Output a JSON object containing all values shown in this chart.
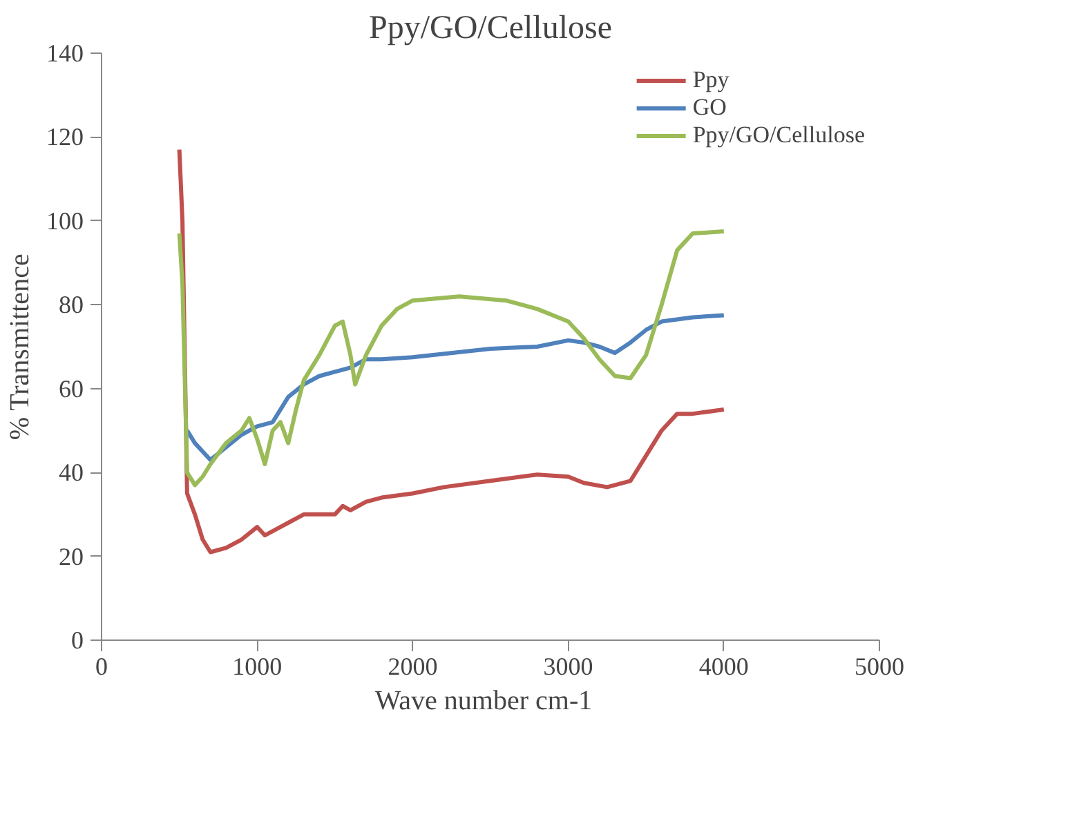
{
  "chart_data": {
    "type": "line",
    "title": "Ppy/GO/Cellulose",
    "xlabel": "Wave  number  cm-1",
    "ylabel": "% Transmittence",
    "xlim": [
      0,
      5000
    ],
    "xticks": [
      0,
      1000,
      2000,
      3000,
      4000,
      5000
    ],
    "ylim": [
      0,
      140
    ],
    "yticks": [
      0,
      20,
      40,
      60,
      80,
      100,
      120,
      140
    ],
    "grid": false,
    "legend": "top right",
    "marker": "none",
    "line_style": "solid",
    "series": [
      {
        "name": "Ppy",
        "color": "#c0504d",
        "x": [
          500,
          520,
          550,
          600,
          650,
          700,
          800,
          900,
          1000,
          1050,
          1100,
          1200,
          1300,
          1500,
          1550,
          1600,
          1700,
          1800,
          2000,
          2200,
          2500,
          2800,
          3000,
          3100,
          3250,
          3400,
          3500,
          3600,
          3700,
          3800,
          4000
        ],
        "values": [
          117,
          100,
          35,
          30,
          24,
          21,
          22,
          24,
          27,
          25,
          26,
          28,
          30,
          30,
          32,
          31,
          33,
          34,
          35,
          36.5,
          38,
          39.5,
          39,
          37.5,
          36.5,
          38,
          44,
          50,
          54,
          54,
          55
        ]
      },
      {
        "name": "GO",
        "color": "#4f81bd",
        "x": [
          550,
          600,
          700,
          800,
          900,
          1000,
          1100,
          1200,
          1300,
          1400,
          1500,
          1600,
          1700,
          1800,
          2000,
          2500,
          2800,
          3000,
          3100,
          3200,
          3300,
          3400,
          3500,
          3600,
          3800,
          4000
        ],
        "values": [
          50,
          47,
          43,
          46,
          49,
          51,
          52,
          58,
          61,
          63,
          64,
          65,
          67,
          67,
          67.5,
          69.5,
          70,
          71.5,
          71,
          70,
          68.5,
          71,
          74,
          76,
          77,
          77.5
        ]
      },
      {
        "name": "Ppy/GO/Cellulose",
        "color": "#9bbb59",
        "x": [
          500,
          520,
          550,
          600,
          650,
          700,
          800,
          900,
          950,
          1000,
          1050,
          1100,
          1150,
          1200,
          1250,
          1300,
          1400,
          1500,
          1550,
          1600,
          1630,
          1700,
          1800,
          1900,
          2000,
          2300,
          2600,
          2800,
          3000,
          3100,
          3200,
          3300,
          3400,
          3500,
          3600,
          3700,
          3800,
          4000
        ],
        "values": [
          97,
          85,
          40,
          37,
          39,
          42,
          47,
          50,
          53,
          48,
          42,
          50,
          52,
          47,
          55,
          62,
          68,
          75,
          76,
          68,
          61,
          68,
          75,
          79,
          81,
          82,
          81,
          79,
          76,
          72,
          67,
          63,
          62.5,
          68,
          80,
          93,
          97,
          97.5
        ]
      }
    ]
  }
}
